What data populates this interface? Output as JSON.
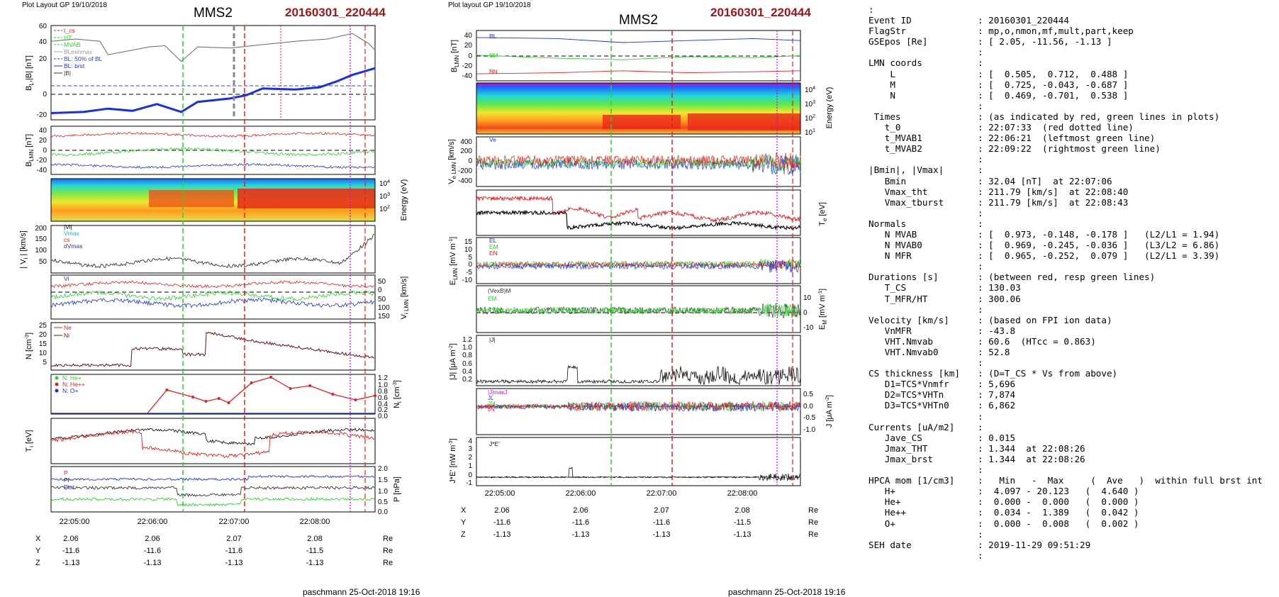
{
  "left": {
    "layout_label": "Plot Layout GP 19/10/2018",
    "spacecraft": "MMS2",
    "event": "20160301_220444",
    "footer": "paschmann 25-Oct-2018 19:16",
    "time_ticks": [
      "22:05:00",
      "22:06:00",
      "22:07:00",
      "22:08:00"
    ],
    "pos": {
      "rows": [
        {
          "name": "X",
          "values": [
            "2.06",
            "2.06",
            "2.07",
            "2.08"
          ],
          "unit": "Re"
        },
        {
          "name": "Y",
          "values": [
            "-11.6",
            "-11.6",
            "-11.6",
            "-11.5"
          ],
          "unit": "Re"
        },
        {
          "name": "Z",
          "values": [
            "-1.13",
            "-1.13",
            "-1.13",
            "-1.13"
          ],
          "unit": "Re"
        }
      ]
    },
    "legend_bl": [
      "t_cs",
      "HT",
      "MVAB",
      "BLminmax",
      "BL: 50% of BL",
      "BL: brst",
      "|B|"
    ],
    "legend_v": [
      "|Vi|",
      "Vmax",
      "cs",
      "dVmax"
    ],
    "legend_vi": [
      "Vi"
    ],
    "legend_n": [
      "Ne",
      "Ni"
    ],
    "legend_hpca": [
      "N: He+",
      "N: He++",
      "N: O+"
    ],
    "legend_p": [
      "P",
      "Pi",
      "Ptot"
    ]
  },
  "right": {
    "layout_label": "Plot layout GP 19/10/2018",
    "spacecraft": "MMS2",
    "event": "20160301_220444",
    "footer": "paschmann 25-Oct-2018 19:16",
    "time_ticks": [
      "22:05:00",
      "22:06:00",
      "22:07:00",
      "22:08:00"
    ],
    "pos": {
      "rows": [
        {
          "name": "X",
          "values": [
            "2.06",
            "2.06",
            "2.07",
            "2.08"
          ],
          "unit": "Re"
        },
        {
          "name": "Y",
          "values": [
            "-11.6",
            "-11.6",
            "-11.6",
            "-11.5"
          ],
          "unit": "Re"
        },
        {
          "name": "Z",
          "values": [
            "-1.13",
            "-1.13",
            "-1.13",
            "-1.13"
          ],
          "unit": "Re"
        }
      ]
    },
    "legend_b": [
      "BL",
      "BM",
      "BN"
    ],
    "legend_ve": [
      "Ve"
    ],
    "legend_e": [
      "EL",
      "EM",
      "EN"
    ],
    "legend_vexb": [
      "(VexB)M",
      "EM"
    ],
    "legend_j": [
      "|J|"
    ],
    "legend_jlmn": [
      "|J|maxJ",
      "JL",
      "JM",
      "JN"
    ],
    "legend_je": [
      "J*E'"
    ]
  },
  "info": {
    "top_marker": ":",
    "rows": [
      {
        "k": "Event ID",
        "v": ": 20160301_220444"
      },
      {
        "k": "FlagStr",
        "v": ": mp,o,nmon,mf,mult,part,keep"
      },
      {
        "k": "GSEpos [Re]",
        "v": ": [ 2.05, -11.56, -1.13 ]"
      },
      {
        "k": "",
        "v": ":"
      },
      {
        "k": "LMN coords",
        "v": ":"
      },
      {
        "k": "    L",
        "v": ": [  0.505,  0.712,  0.488 ]"
      },
      {
        "k": "    M",
        "v": ": [  0.725, -0.043, -0.687 ]"
      },
      {
        "k": "    N",
        "v": ": [  0.469, -0.701,  0.538 ]"
      },
      {
        "k": "",
        "v": ":"
      },
      {
        "k": " Times",
        "v": ": (as indicated by red, green lines in plots)"
      },
      {
        "k": "   t_0",
        "v": ": 22:07:33  (red dotted line)"
      },
      {
        "k": "   t_MVAB1",
        "v": ": 22:06:21  (leftmost green line)"
      },
      {
        "k": "   t_MVAB2",
        "v": ": 22:09:22  (rightmost green line)"
      },
      {
        "k": "",
        "v": ":"
      },
      {
        "k": "|Bmin|, |Vmax|",
        "v": ":"
      },
      {
        "k": "   Bmin",
        "v": ": 32.04 [nT]  at 22:07:06"
      },
      {
        "k": "   Vmax_tht",
        "v": ": 211.79 [km/s]  at 22:08:40"
      },
      {
        "k": "   Vmax_tburst",
        "v": ": 211.79 [km/s]  at 22:08:43"
      },
      {
        "k": "",
        "v": ":"
      },
      {
        "k": "Normals",
        "v": ":"
      },
      {
        "k": "   N MVAB",
        "v": ": [  0.973, -0.148, -0.178 ]   (L2/L1 = 1.94)"
      },
      {
        "k": "   N MVAB0",
        "v": ": [  0.969, -0.245, -0.036 ]   (L3/L2 = 6.86)"
      },
      {
        "k": "   N MFR",
        "v": ": [  0.965, -0.252,  0.079 ]   (L2/L1 = 3.39)"
      },
      {
        "k": "",
        "v": ":"
      },
      {
        "k": "Durations [s]",
        "v": ": (between red, resp green lines)"
      },
      {
        "k": "   T_CS",
        "v": ": 130.03"
      },
      {
        "k": "   T_MFR/HT",
        "v": ": 300.06"
      },
      {
        "k": "",
        "v": ":"
      },
      {
        "k": "Velocity [km/s]",
        "v": ": (based on FPI ion data)"
      },
      {
        "k": "   VnMFR",
        "v": ": -43.8"
      },
      {
        "k": "   VHT.Nmvab",
        "v": ": 60.6  (HTcc = 0.863)"
      },
      {
        "k": "   VHT.Nmvab0",
        "v": ": 52.8"
      },
      {
        "k": "",
        "v": ":"
      },
      {
        "k": "CS thickness [km]",
        "v": ": (D=T_CS * Vs from above)"
      },
      {
        "k": "   D1=TCS*Vnmfr",
        "v": ": 5,696"
      },
      {
        "k": "   D2=TCS*VHTn",
        "v": ": 7,874"
      },
      {
        "k": "   D3=TCS*VHTn0",
        "v": ": 6,862"
      },
      {
        "k": "",
        "v": ":"
      },
      {
        "k": "Currents [uA/m2]",
        "v": ":"
      },
      {
        "k": "   Jave_CS",
        "v": ": 0.015"
      },
      {
        "k": "   Jmax_THT",
        "v": ": 1.344  at 22:08:26"
      },
      {
        "k": "   Jmax_brst",
        "v": ": 1.344  at 22:08:26"
      },
      {
        "k": "",
        "v": ":"
      },
      {
        "k": "HPCA mom [1/cm3]",
        "v": ":   Min   -  Max     (  Ave   )  within full brst int"
      },
      {
        "k": "   H+",
        "v": ":  4.097 - 20.123   (  4.640 )"
      },
      {
        "k": "   He+",
        "v": ":  0.000 -  0.000   (  0.000 )"
      },
      {
        "k": "   He++",
        "v": ":  0.034 -  1.389   (  0.042 )"
      },
      {
        "k": "   O+",
        "v": ":  0.000 -  0.008   (  0.002 )"
      },
      {
        "k": "",
        "v": ":"
      },
      {
        "k": "SEH date",
        "v": ": 2019-11-29 09:51:29"
      },
      {
        "k": "",
        "v": ":"
      }
    ]
  },
  "chart_data": [
    {
      "type": "line",
      "panel": "left-1",
      "ylabel": "BL,|B| [nT]",
      "yticks": [
        "60",
        "40",
        "20",
        "0",
        "-20"
      ],
      "ylim": [
        -22,
        62
      ],
      "series": [
        {
          "name": "|B|",
          "color": "#666666",
          "values": [
            [
              300,
              48
            ],
            [
              330,
              50
            ],
            [
              360,
              48
            ],
            [
              370,
              36
            ],
            [
              400,
              40
            ],
            [
              420,
              43
            ],
            [
              440,
              44
            ],
            [
              460,
              30
            ],
            [
              480,
              43
            ],
            [
              520,
              42
            ],
            [
              560,
              45
            ],
            [
              600,
              48
            ],
            [
              640,
              50
            ],
            [
              670,
              55
            ],
            [
              690,
              46
            ],
            [
              698,
              40
            ]
          ]
        },
        {
          "name": "BL: brst",
          "color": "#1a2fe0",
          "values": [
            [
              300,
              -16
            ],
            [
              340,
              -15
            ],
            [
              370,
              -12
            ],
            [
              400,
              -14
            ],
            [
              430,
              -8
            ],
            [
              460,
              -15
            ],
            [
              480,
              -6
            ],
            [
              520,
              -3
            ],
            [
              540,
              0
            ],
            [
              560,
              6
            ],
            [
              600,
              5
            ],
            [
              630,
              7
            ],
            [
              650,
              12
            ],
            [
              670,
              18
            ],
            [
              698,
              24
            ]
          ]
        }
      ]
    },
    {
      "type": "line",
      "panel": "right-1",
      "ylabel": "BLMN [nT]",
      "yticks": [
        "40",
        "20",
        "0",
        "-20",
        "-40"
      ],
      "ylim": [
        -50,
        50
      ],
      "series": [
        {
          "name": "BL",
          "color": "#1a2fe0",
          "values": [
            [
              300,
              36
            ],
            [
              400,
              34
            ],
            [
              480,
              26
            ],
            [
              560,
              30
            ],
            [
              640,
              34
            ],
            [
              698,
              30
            ]
          ]
        },
        {
          "name": "BM",
          "color": "#2ad42a",
          "values": [
            [
              300,
              1
            ],
            [
              400,
              -5
            ],
            [
              480,
              -8
            ],
            [
              560,
              -2
            ],
            [
              640,
              -4
            ],
            [
              698,
              0
            ]
          ]
        },
        {
          "name": "BN",
          "color": "#e81e1e",
          "values": [
            [
              300,
              -36
            ],
            [
              400,
              -34
            ],
            [
              480,
              -30
            ],
            [
              560,
              -34
            ],
            [
              640,
              -32
            ],
            [
              698,
              -30
            ]
          ]
        }
      ]
    }
  ]
}
